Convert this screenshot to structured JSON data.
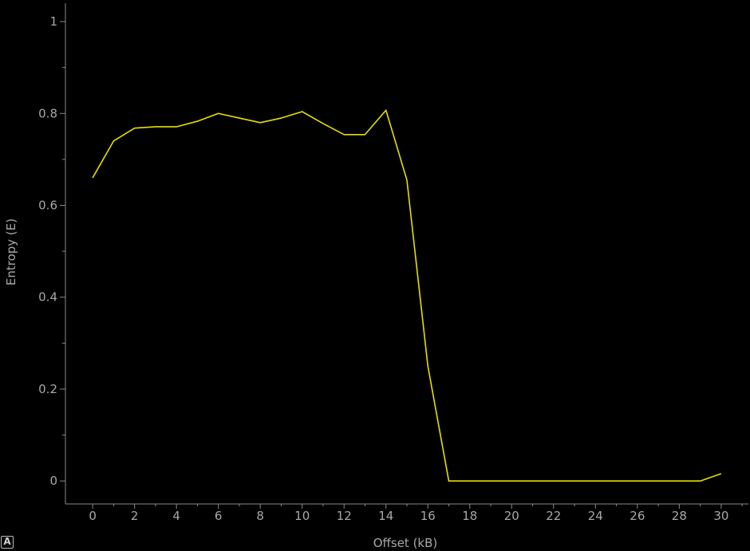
{
  "chart_data": {
    "type": "line",
    "xlabel": "Offset (kB)",
    "ylabel": "Entropy (E)",
    "xlim": [
      -1.3,
      31.3
    ],
    "ylim": [
      -0.05,
      1.04
    ],
    "x_ticks": [
      0,
      2,
      4,
      6,
      8,
      10,
      12,
      14,
      16,
      18,
      20,
      22,
      24,
      26,
      28,
      30
    ],
    "y_ticks": [
      0,
      0.2,
      0.4,
      0.6,
      0.8,
      1
    ],
    "y_tick_labels": [
      "0",
      "0.2",
      "0.4",
      "0.6",
      "0.8",
      "1"
    ],
    "grid": false,
    "series": [
      {
        "color": "#e6e000",
        "x": [
          0,
          1,
          2,
          3,
          4,
          5,
          6,
          7,
          8,
          9,
          10,
          11,
          12,
          13,
          14,
          15,
          16,
          17,
          18,
          19,
          20,
          21,
          22,
          23,
          24,
          25,
          26,
          27,
          28,
          29,
          30
        ],
        "y": [
          0.66,
          0.74,
          0.768,
          0.771,
          0.771,
          0.783,
          0.8,
          0.79,
          0.78,
          0.79,
          0.804,
          0.778,
          0.754,
          0.754,
          0.807,
          0.655,
          0.25,
          0.0,
          0.0,
          0.0,
          0.0,
          0.0,
          0.0,
          0.0,
          0.0,
          0.0,
          0.0,
          0.0,
          0.0,
          0.0,
          0.016
        ]
      }
    ]
  },
  "badge": {
    "label": "A"
  }
}
